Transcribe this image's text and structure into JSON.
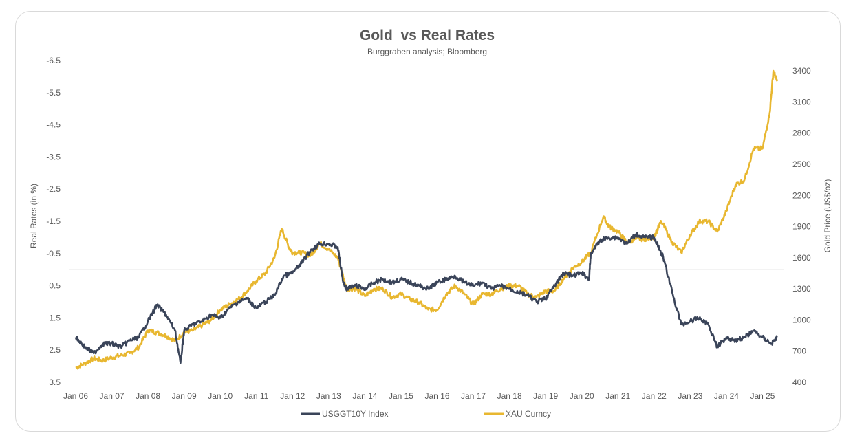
{
  "chart_data": {
    "type": "line",
    "title": "Gold  vs Real Rates",
    "subtitle": "Burggraben analysis; Bloomberg",
    "ylabel_left": "Real Rates (in %)",
    "ylabel_right": "Gold Price (US$/oz)",
    "left_axis": {
      "range": [
        3.5,
        -6.5
      ],
      "inverted": true,
      "tick_labels": [
        "-6.5",
        "-5.5",
        "-4.5",
        "-3.5",
        "-2.5",
        "-1.5",
        "-0.5",
        "0.5",
        "1.5",
        "2.5",
        "3.5"
      ]
    },
    "right_axis": {
      "range": [
        400,
        3500
      ],
      "tick_labels": [
        "3400",
        "3100",
        "2800",
        "2500",
        "2200",
        "1900",
        "1600",
        "1300",
        "1000",
        "700",
        "400"
      ]
    },
    "x_tick_labels": [
      "Jan 06",
      "Jan 07",
      "Jan 08",
      "Jan 09",
      "Jan 10",
      "Jan 11",
      "Jan 12",
      "Jan 13",
      "Jan 14",
      "Jan 15",
      "Jan 16",
      "Jan 17",
      "Jan 18",
      "Jan 19",
      "Jan 20",
      "Jan 21",
      "Jan 22",
      "Jan 23",
      "Jan 24",
      "Jan 25"
    ],
    "x_range": [
      2006.0,
      2025.6
    ],
    "series": [
      {
        "name": "USGGT10Y Index",
        "axis": "left",
        "color": "#3a4459",
        "x": [
          2006.0,
          2006.25,
          2006.5,
          2006.75,
          2007.0,
          2007.25,
          2007.5,
          2007.75,
          2008.0,
          2008.25,
          2008.5,
          2008.75,
          2008.9,
          2009.0,
          2009.25,
          2009.5,
          2009.75,
          2010.0,
          2010.25,
          2010.5,
          2010.75,
          2011.0,
          2011.25,
          2011.5,
          2011.75,
          2012.0,
          2012.25,
          2012.5,
          2012.75,
          2013.0,
          2013.25,
          2013.4,
          2013.5,
          2013.75,
          2014.0,
          2014.25,
          2014.5,
          2014.75,
          2015.0,
          2015.25,
          2015.5,
          2015.75,
          2016.0,
          2016.25,
          2016.5,
          2016.75,
          2017.0,
          2017.25,
          2017.5,
          2017.75,
          2018.0,
          2018.25,
          2018.5,
          2018.75,
          2019.0,
          2019.25,
          2019.5,
          2019.75,
          2020.0,
          2020.2,
          2020.25,
          2020.5,
          2020.75,
          2021.0,
          2021.25,
          2021.5,
          2021.75,
          2022.0,
          2022.25,
          2022.5,
          2022.75,
          2023.0,
          2023.25,
          2023.5,
          2023.75,
          2024.0,
          2024.25,
          2024.5,
          2024.75,
          2025.0,
          2025.25,
          2025.4
        ],
        "values": [
          2.1,
          2.4,
          2.6,
          2.3,
          2.3,
          2.4,
          2.2,
          2.1,
          1.6,
          1.1,
          1.4,
          1.9,
          2.9,
          1.9,
          1.7,
          1.6,
          1.4,
          1.5,
          1.2,
          1.0,
          0.9,
          1.2,
          1.0,
          0.8,
          0.2,
          0.1,
          -0.2,
          -0.6,
          -0.8,
          -0.8,
          -0.7,
          0.4,
          0.6,
          0.5,
          0.6,
          0.4,
          0.3,
          0.4,
          0.3,
          0.4,
          0.5,
          0.6,
          0.4,
          0.3,
          0.2,
          0.4,
          0.5,
          0.4,
          0.6,
          0.5,
          0.6,
          0.7,
          0.8,
          1.0,
          0.9,
          0.5,
          0.1,
          0.2,
          0.1,
          0.3,
          -0.5,
          -0.9,
          -1.0,
          -1.0,
          -0.8,
          -1.1,
          -1.0,
          -1.0,
          -0.4,
          0.7,
          1.7,
          1.6,
          1.5,
          1.7,
          2.4,
          2.1,
          2.2,
          2.1,
          1.9,
          2.1,
          2.3,
          2.1
        ]
      },
      {
        "name": "XAU Curncy",
        "axis": "right",
        "color": "#e8b730",
        "x": [
          2006.0,
          2006.25,
          2006.5,
          2006.75,
          2007.0,
          2007.25,
          2007.5,
          2007.75,
          2008.0,
          2008.25,
          2008.5,
          2008.75,
          2009.0,
          2009.25,
          2009.5,
          2009.75,
          2010.0,
          2010.25,
          2010.5,
          2010.75,
          2011.0,
          2011.25,
          2011.5,
          2011.7,
          2011.9,
          2012.0,
          2012.25,
          2012.5,
          2012.75,
          2013.0,
          2013.25,
          2013.5,
          2013.75,
          2014.0,
          2014.25,
          2014.5,
          2014.75,
          2015.0,
          2015.25,
          2015.5,
          2015.75,
          2016.0,
          2016.25,
          2016.5,
          2016.75,
          2017.0,
          2017.25,
          2017.5,
          2017.75,
          2018.0,
          2018.25,
          2018.5,
          2018.75,
          2019.0,
          2019.25,
          2019.5,
          2019.75,
          2020.0,
          2020.25,
          2020.6,
          2020.75,
          2021.0,
          2021.25,
          2021.5,
          2021.75,
          2022.0,
          2022.2,
          2022.5,
          2022.75,
          2023.0,
          2023.25,
          2023.5,
          2023.75,
          2024.0,
          2024.25,
          2024.5,
          2024.75,
          2025.0,
          2025.2,
          2025.3,
          2025.4
        ],
        "values": [
          540,
          580,
          630,
          610,
          640,
          660,
          680,
          740,
          900,
          880,
          850,
          800,
          880,
          900,
          950,
          1000,
          1100,
          1150,
          1200,
          1280,
          1380,
          1450,
          1600,
          1880,
          1700,
          1650,
          1650,
          1620,
          1740,
          1680,
          1600,
          1300,
          1300,
          1230,
          1300,
          1300,
          1220,
          1250,
          1200,
          1170,
          1100,
          1100,
          1250,
          1330,
          1250,
          1150,
          1250,
          1250,
          1300,
          1330,
          1330,
          1250,
          1220,
          1280,
          1280,
          1400,
          1500,
          1560,
          1650,
          2000,
          1900,
          1850,
          1750,
          1780,
          1780,
          1800,
          1950,
          1750,
          1650,
          1820,
          1950,
          1950,
          1850,
          2050,
          2300,
          2350,
          2650,
          2650,
          3000,
          3400,
          3300
        ]
      }
    ],
    "legend_position": "bottom-center",
    "grid": false
  }
}
